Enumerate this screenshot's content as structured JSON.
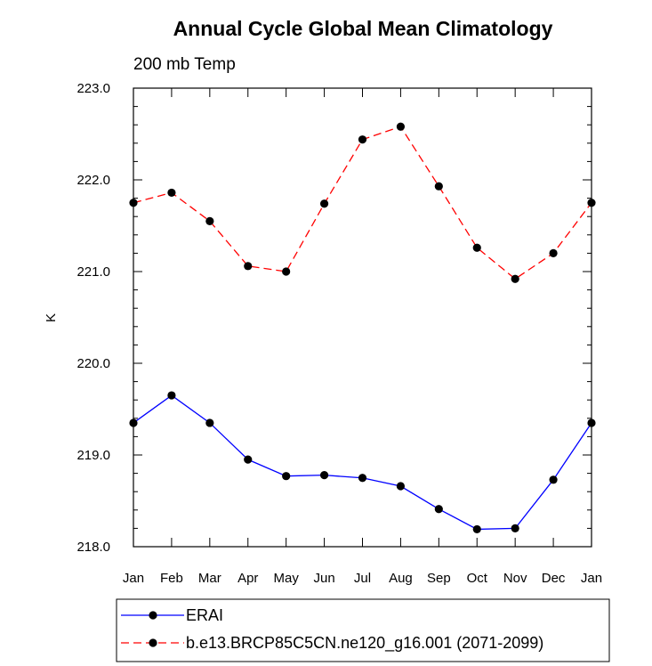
{
  "chart_data": {
    "type": "line",
    "title": "Annual Cycle Global Mean Climatology",
    "subtitle": "200 mb Temp",
    "xlabel": "",
    "ylabel": "K",
    "categories": [
      "Jan",
      "Feb",
      "Mar",
      "Apr",
      "May",
      "Jun",
      "Jul",
      "Aug",
      "Sep",
      "Oct",
      "Nov",
      "Dec",
      "Jan"
    ],
    "ylim": [
      218.0,
      223.0
    ],
    "yticks": [
      "218.0",
      "219.0",
      "220.0",
      "221.0",
      "222.0",
      "223.0"
    ],
    "grid": false,
    "legend_position": "bottom",
    "series": [
      {
        "name": "ERAI",
        "color": "#0000ff",
        "dash": "solid",
        "values": [
          219.35,
          219.65,
          219.35,
          218.95,
          218.77,
          218.78,
          218.75,
          218.66,
          218.41,
          218.19,
          218.2,
          218.73,
          219.35
        ]
      },
      {
        "name": "b.e13.BRCP85C5CN.ne120_g16.001 (2071-2099)",
        "color": "#ff0000",
        "dash": "dashed",
        "values": [
          221.75,
          221.86,
          221.55,
          221.06,
          221.0,
          221.74,
          222.44,
          222.58,
          221.93,
          221.26,
          220.92,
          221.2,
          221.75
        ]
      }
    ]
  }
}
